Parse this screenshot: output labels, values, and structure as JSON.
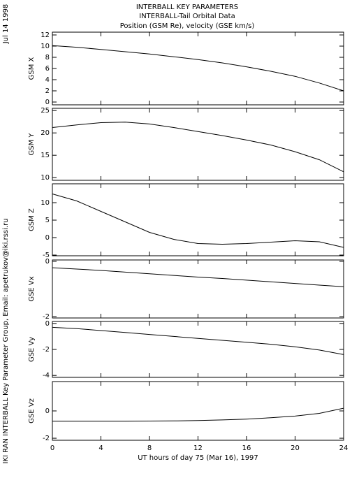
{
  "header": {
    "title": [
      "INTERBALL KEY PARAMETERS",
      "INTERBALL-Tail Orbital Data",
      "Position (GSM Re), velocity (GSE km/s)"
    ],
    "date": "Jul 14 1998",
    "credit": "IKI RAN INTERBALL Key Parameter Group, Email: apetrukov@iki.rssi.ru"
  },
  "chart_data": [
    {
      "type": "line",
      "ylabel": "GSM X",
      "x": [
        0,
        2,
        4,
        6,
        8,
        10,
        12,
        14,
        16,
        18,
        20,
        22,
        24
      ],
      "values": [
        10.1,
        9.8,
        9.4,
        9.0,
        8.6,
        8.1,
        7.6,
        7.0,
        6.3,
        5.5,
        4.6,
        3.4,
        2.0
      ],
      "xlim": [
        0,
        24
      ],
      "xticks": [
        0,
        4,
        8,
        12,
        16,
        20,
        24
      ],
      "ylim": [
        -0.5,
        12.5
      ],
      "yticks": [
        0,
        2,
        4,
        6,
        8,
        10,
        12
      ],
      "color": "#000000"
    },
    {
      "type": "line",
      "ylabel": "GSM Y",
      "x": [
        0,
        2,
        4,
        6,
        8,
        10,
        12,
        14,
        16,
        18,
        20,
        22,
        24
      ],
      "values": [
        21.2,
        21.8,
        22.3,
        22.4,
        22.0,
        21.2,
        20.3,
        19.4,
        18.4,
        17.3,
        15.8,
        14.0,
        11.3
      ],
      "xlim": [
        0,
        24
      ],
      "xticks": [
        0,
        4,
        8,
        12,
        16,
        20,
        24
      ],
      "ylim": [
        9.4,
        25.5
      ],
      "yticks": [
        10,
        15,
        20,
        25
      ],
      "color": "#000000"
    },
    {
      "type": "line",
      "ylabel": "GSM Z",
      "x": [
        0,
        2,
        4,
        6,
        8,
        10,
        12,
        14,
        16,
        18,
        20,
        22,
        24
      ],
      "values": [
        12.5,
        10.5,
        7.5,
        4.5,
        1.5,
        -0.5,
        -1.7,
        -1.9,
        -1.7,
        -1.3,
        -0.9,
        -1.2,
        -2.8
      ],
      "xlim": [
        0,
        24
      ],
      "xticks": [
        0,
        4,
        8,
        12,
        16,
        20,
        24
      ],
      "ylim": [
        -5.2,
        15.4
      ],
      "yticks": [
        -5,
        0,
        5,
        10
      ],
      "color": "#000000"
    },
    {
      "type": "line",
      "ylabel": "GSE Vx",
      "x": [
        0,
        2,
        4,
        6,
        8,
        10,
        12,
        14,
        16,
        18,
        20,
        22,
        24
      ],
      "values": [
        -0.23,
        -0.28,
        -0.33,
        -0.39,
        -0.45,
        -0.51,
        -0.57,
        -0.62,
        -0.68,
        -0.74,
        -0.8,
        -0.86,
        -0.92
      ],
      "xlim": [
        0,
        24
      ],
      "xticks": [
        0,
        4,
        8,
        12,
        16,
        20,
        24
      ],
      "ylim": [
        -2.05,
        0.05
      ],
      "yticks": [
        -2,
        0
      ],
      "color": "#000000"
    },
    {
      "type": "line",
      "ylabel": "GSE Vy",
      "x": [
        0,
        2,
        4,
        6,
        8,
        10,
        12,
        14,
        16,
        18,
        20,
        22,
        24
      ],
      "values": [
        -0.3,
        -0.4,
        -0.55,
        -0.7,
        -0.85,
        -1.0,
        -1.15,
        -1.3,
        -1.45,
        -1.6,
        -1.8,
        -2.05,
        -2.4
      ],
      "xlim": [
        0,
        24
      ],
      "xticks": [
        0,
        4,
        8,
        12,
        16,
        20,
        24
      ],
      "ylim": [
        -4.15,
        0.15
      ],
      "yticks": [
        -4,
        -2,
        0
      ],
      "color": "#000000"
    },
    {
      "type": "line",
      "ylabel": "GSE Vz",
      "x": [
        0,
        2,
        4,
        6,
        8,
        10,
        12,
        14,
        16,
        18,
        20,
        22,
        24
      ],
      "values": [
        -0.75,
        -0.75,
        -0.75,
        -0.75,
        -0.74,
        -0.73,
        -0.7,
        -0.66,
        -0.6,
        -0.5,
        -0.38,
        -0.18,
        0.2
      ],
      "xlim": [
        0,
        24
      ],
      "xticks": [
        0,
        4,
        8,
        12,
        16,
        20,
        24
      ],
      "ylim": [
        -2.15,
        2.15
      ],
      "yticks": [
        -2,
        0
      ],
      "color": "#000000",
      "xlabel": "UT hours of day  75 (Mar 16), 1997"
    }
  ]
}
